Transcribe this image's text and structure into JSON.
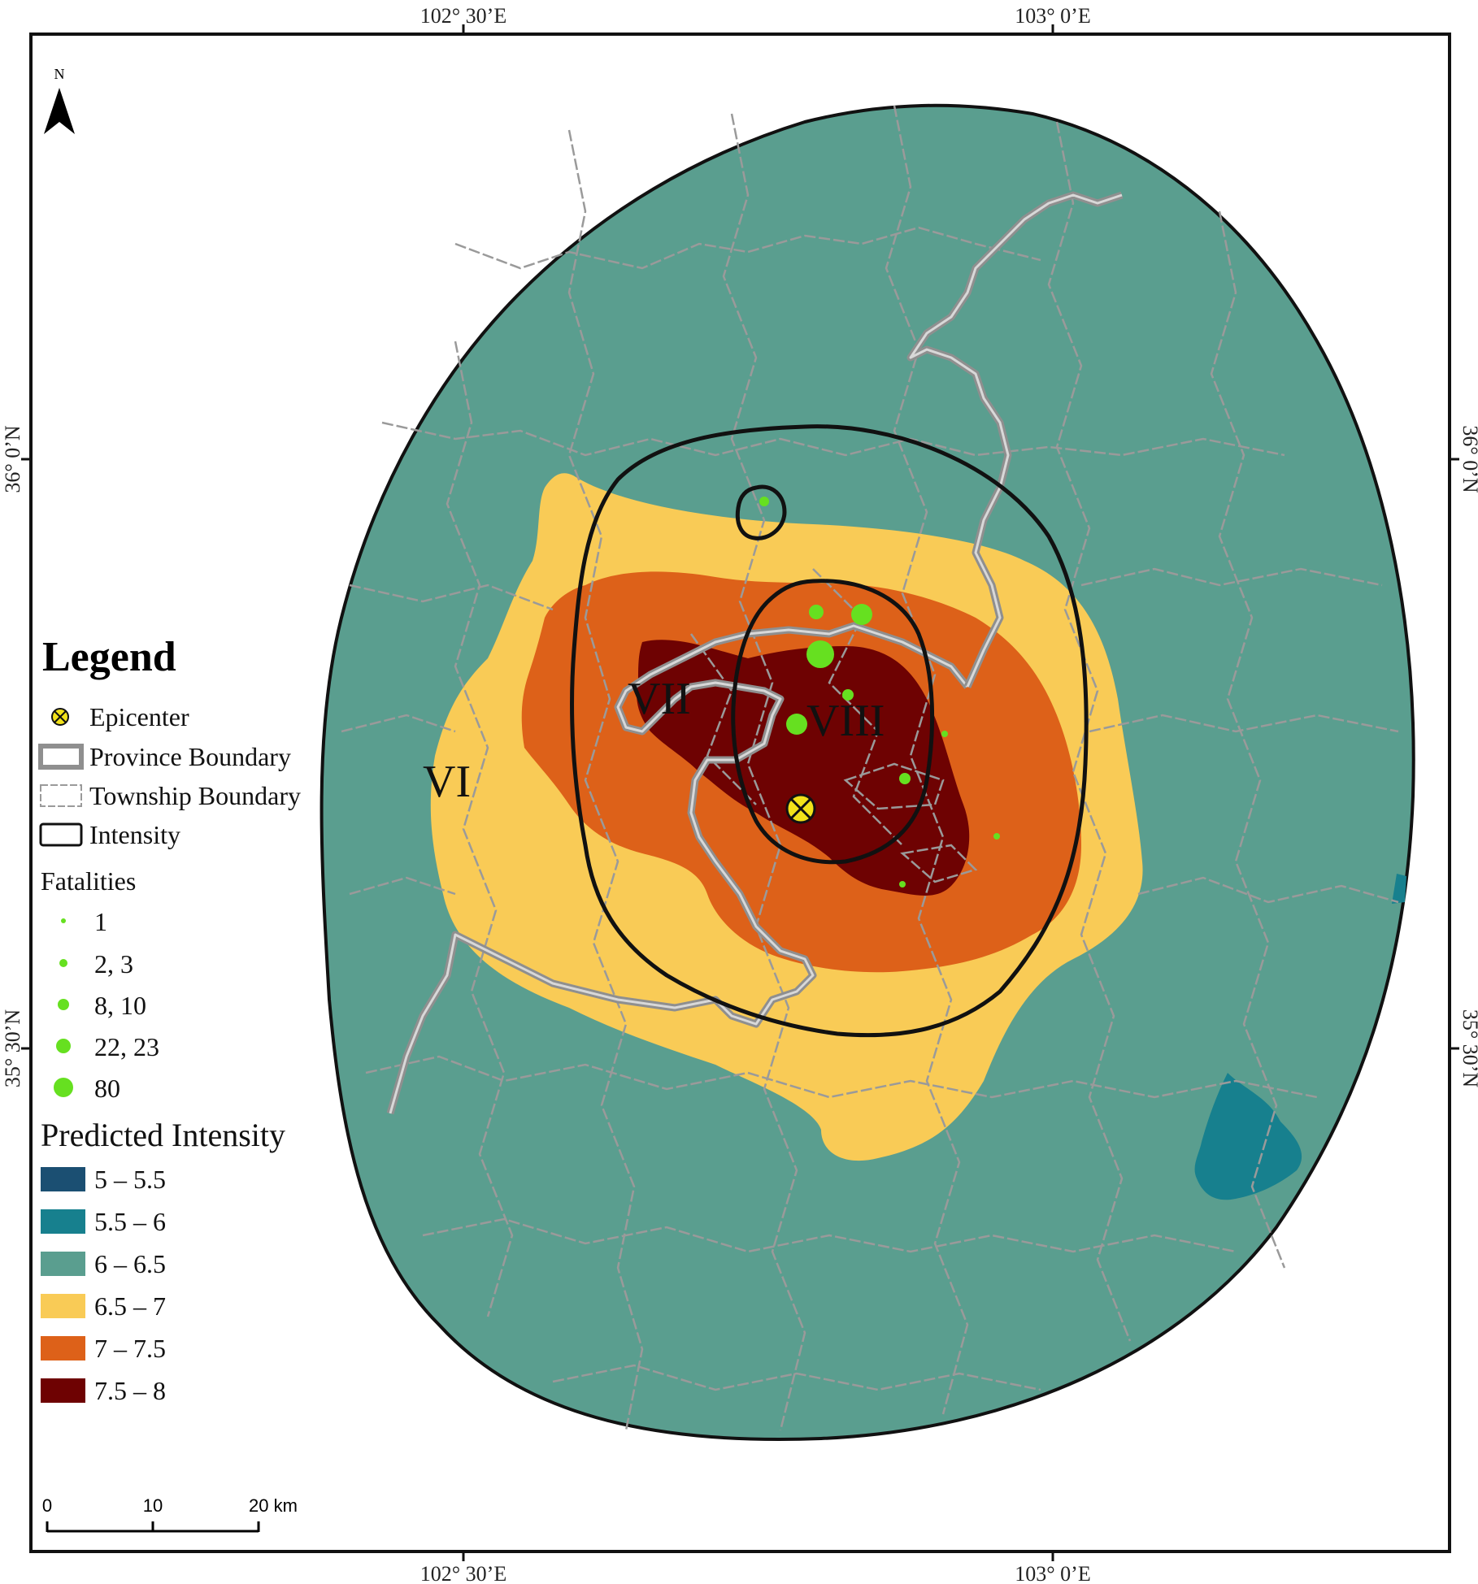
{
  "coordinates": {
    "top": [
      "102° 30’E",
      "103° 0’E"
    ],
    "bottom": [
      "102° 30’E",
      "103° 0’E"
    ],
    "left": [
      "36° 0’N",
      "35° 30’N"
    ],
    "right": [
      "36° 0’N",
      "35° 30’N"
    ]
  },
  "north_arrow": {
    "label": "N",
    "icon": "north-arrow-icon"
  },
  "legend": {
    "title": "Legend",
    "symbols": {
      "epicenter": "Epicenter",
      "province_boundary": "Province Boundary",
      "township_boundary": "Township Boundary",
      "intensity": "Intensity"
    },
    "fatalities": {
      "title": "Fatalities",
      "classes": [
        "1",
        "2, 3",
        "8, 10",
        "22, 23",
        "80"
      ]
    },
    "predicted_intensity": {
      "title": "Predicted Intensity",
      "classes": [
        {
          "label": "5 – 5.5",
          "color": "#1b4f72"
        },
        {
          "label": "5.5 – 6",
          "color": "#17808e"
        },
        {
          "label": "6 – 6.5",
          "color": "#5a9e8f"
        },
        {
          "label": "6.5 – 7",
          "color": "#f9cb56"
        },
        {
          "label": "7 – 7.5",
          "color": "#dd6119"
        },
        {
          "label": "7.5 – 8",
          "color": "#6e0202"
        }
      ]
    }
  },
  "isoseismal_labels": [
    "VI",
    "VII",
    "VIII"
  ],
  "scale_bar": {
    "ticks": [
      "0",
      "10",
      "20 km"
    ]
  },
  "colors": {
    "fatality_point": "#66e020",
    "epicenter_fill": "#f2e21a",
    "boundary_gray": "#9a9a9a",
    "intensity_line": "#111111"
  }
}
